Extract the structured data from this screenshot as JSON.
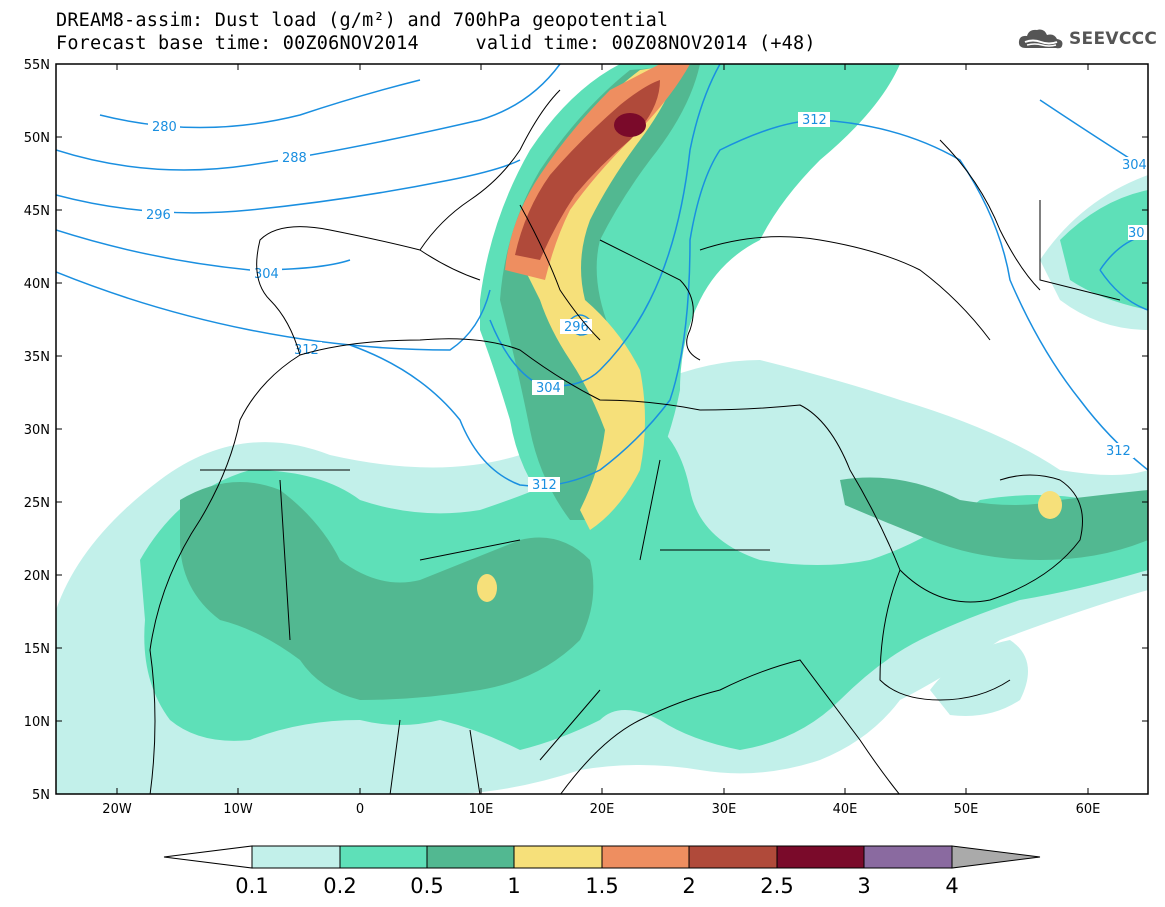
{
  "header": {
    "title_line": "DREAM8-assim: Dust load (g/m²) and 700hPa geopotential",
    "base_time_label": "Forecast base time: 00Z06NOV2014",
    "valid_time_label": "valid time: 00Z08NOV2014 (+48)"
  },
  "logo": {
    "text": "SEEVCCC",
    "icon": "cloud-icon"
  },
  "map": {
    "lat_labels": [
      "55N",
      "50N",
      "45N",
      "40N",
      "35N",
      "30N",
      "25N",
      "20N",
      "15N",
      "10N",
      "5N"
    ],
    "lon_labels": [
      "20W",
      "10W",
      "0",
      "10E",
      "20E",
      "30E",
      "40E",
      "50E",
      "60E"
    ],
    "contour_labels": [
      "280",
      "288",
      "296",
      "304",
      "312",
      "312",
      "304",
      "312",
      "296",
      "304",
      "312",
      "304",
      "30",
      "312"
    ],
    "colors": {
      "contour": "#1a8fe0",
      "coast": "#000000",
      "frame": "#000000"
    }
  },
  "colorbar": {
    "labels": [
      "0.1",
      "0.2",
      "0.5",
      "1",
      "1.5",
      "2",
      "2.5",
      "3",
      "4"
    ],
    "colors": [
      "#c2f0ea",
      "#5ee0b8",
      "#52b891",
      "#f6e07a",
      "#ee8e60",
      "#b04a3a",
      "#7a0a2a",
      "#8a6aa0",
      "#aaaaaa"
    ],
    "units": "g/m²"
  }
}
